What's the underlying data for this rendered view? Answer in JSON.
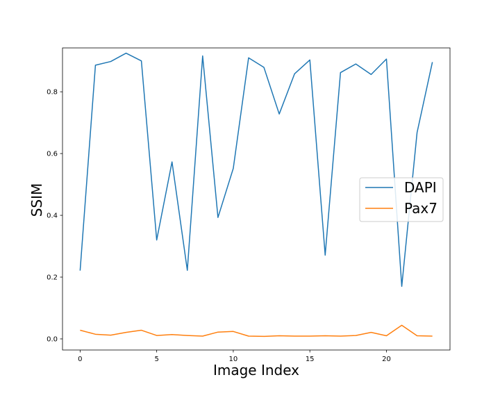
{
  "chart_data": {
    "type": "line",
    "title": "",
    "xlabel": "Image Index",
    "ylabel": "SSIM",
    "xlim": [
      -1.15,
      24.15
    ],
    "ylim": [
      -0.036,
      0.942
    ],
    "xticks": [
      0,
      5,
      10,
      15,
      20
    ],
    "yticks": [
      0.0,
      0.2,
      0.4,
      0.6,
      0.8
    ],
    "ytick_labels": [
      "0.0",
      "0.2",
      "0.4",
      "0.6",
      "0.8"
    ],
    "grid": false,
    "legend_position": "center-right",
    "x": [
      0,
      1,
      2,
      3,
      4,
      5,
      6,
      7,
      8,
      9,
      10,
      11,
      12,
      13,
      14,
      15,
      16,
      17,
      18,
      19,
      20,
      21,
      22,
      23
    ],
    "series": [
      {
        "name": "DAPI",
        "color": "#1f77b4",
        "values": [
          0.221,
          0.886,
          0.898,
          0.925,
          0.9,
          0.32,
          0.573,
          0.222,
          0.916,
          0.393,
          0.552,
          0.91,
          0.879,
          0.728,
          0.858,
          0.903,
          0.271,
          0.862,
          0.89,
          0.856,
          0.906,
          0.17,
          0.668,
          0.896
        ]
      },
      {
        "name": "Pax7",
        "color": "#ff7f0e",
        "values": [
          0.028,
          0.015,
          0.012,
          0.021,
          0.028,
          0.011,
          0.014,
          0.011,
          0.009,
          0.022,
          0.024,
          0.009,
          0.008,
          0.01,
          0.009,
          0.009,
          0.01,
          0.009,
          0.011,
          0.021,
          0.01,
          0.044,
          0.01,
          0.009
        ]
      }
    ]
  }
}
